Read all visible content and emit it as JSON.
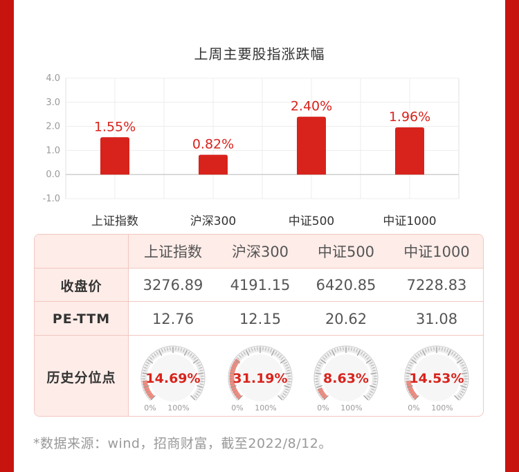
{
  "chart_data": {
    "type": "bar",
    "title": "上周主要股指涨跌幅",
    "categories": [
      "上证指数",
      "沪深300",
      "中证500",
      "中证1000"
    ],
    "values": [
      1.55,
      0.82,
      2.4,
      1.96
    ],
    "value_labels": [
      "1.55%",
      "0.82%",
      "2.40%",
      "1.96%"
    ],
    "ylim": [
      -1.0,
      4.0
    ],
    "yticks": [
      "4.0",
      "3.0",
      "2.0",
      "1.0",
      "0.0",
      "-1.0"
    ],
    "ytick_values": [
      4,
      3,
      2,
      1,
      0,
      -1
    ],
    "grid": true,
    "bar_color": "#d8231c",
    "label_color": "#d8231c"
  },
  "table": {
    "columns": [
      "上证指数",
      "沪深300",
      "中证500",
      "中证1000"
    ],
    "rows": {
      "close": {
        "label": "收盘价",
        "values": [
          "3276.89",
          "4191.15",
          "6420.85",
          "7228.83"
        ]
      },
      "pe": {
        "label": "PE-TTM",
        "values": [
          "12.76",
          "12.15",
          "20.62",
          "31.08"
        ]
      },
      "percentile": {
        "label": "历史分位点",
        "values": [
          "14.69%",
          "31.19%",
          "8.63%",
          "14.53%"
        ],
        "fractions": [
          0.1469,
          0.3119,
          0.0863,
          0.1453
        ],
        "scale_min": "0%",
        "scale_max": "100%"
      }
    }
  },
  "footnote": "*数据来源：wind，招商财富，截至2022/8/12。",
  "colors": {
    "background": "#c8140f",
    "accent": "#d8231c",
    "gauge_fill": "#f08c80",
    "header_bg": "#fdece8",
    "border": "#f2c7c0"
  }
}
